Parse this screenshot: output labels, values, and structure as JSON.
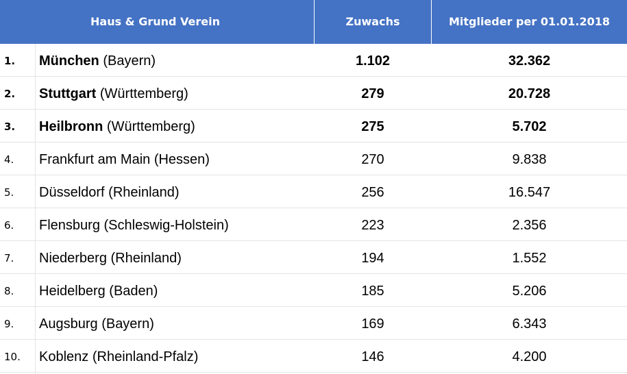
{
  "header": {
    "verein": "Haus & Grund Verein",
    "zuwachs": "Zuwachs",
    "mitglieder": "Mitglieder per 01.01.2018"
  },
  "rows": [
    {
      "rank": "1.",
      "city": "München",
      "region": "(Bayern)",
      "gain": "1.102",
      "members": "32.362",
      "highlight": true
    },
    {
      "rank": "2.",
      "city": "Stuttgart",
      "region": "(Württemberg)",
      "gain": "279",
      "members": "20.728",
      "highlight": true
    },
    {
      "rank": "3.",
      "city": "Heilbronn",
      "region": "(Württemberg)",
      "gain": "275",
      "members": "5.702",
      "highlight": true
    },
    {
      "rank": "4.",
      "city": "Frankfurt am Main",
      "region": "(Hessen)",
      "gain": "270",
      "members": "9.838",
      "highlight": false
    },
    {
      "rank": "5.",
      "city": "Düsseldorf",
      "region": "(Rheinland)",
      "gain": "256",
      "members": "16.547",
      "highlight": false
    },
    {
      "rank": "6.",
      "city": "Flensburg",
      "region": "(Schleswig-Holstein)",
      "gain": "223",
      "members": "2.356",
      "highlight": false
    },
    {
      "rank": "7.",
      "city": "Niederberg",
      "region": "(Rheinland)",
      "gain": "194",
      "members": "1.552",
      "highlight": false
    },
    {
      "rank": "8.",
      "city": "Heidelberg",
      "region": "(Baden)",
      "gain": "185",
      "members": "5.206",
      "highlight": false
    },
    {
      "rank": "9.",
      "city": "Augsburg",
      "region": "(Bayern)",
      "gain": "169",
      "members": "6.343",
      "highlight": false
    },
    {
      "rank": "10.",
      "city": "Koblenz",
      "region": "(Rheinland-Pfalz)",
      "gain": "146",
      "members": "4.200",
      "highlight": false
    }
  ]
}
